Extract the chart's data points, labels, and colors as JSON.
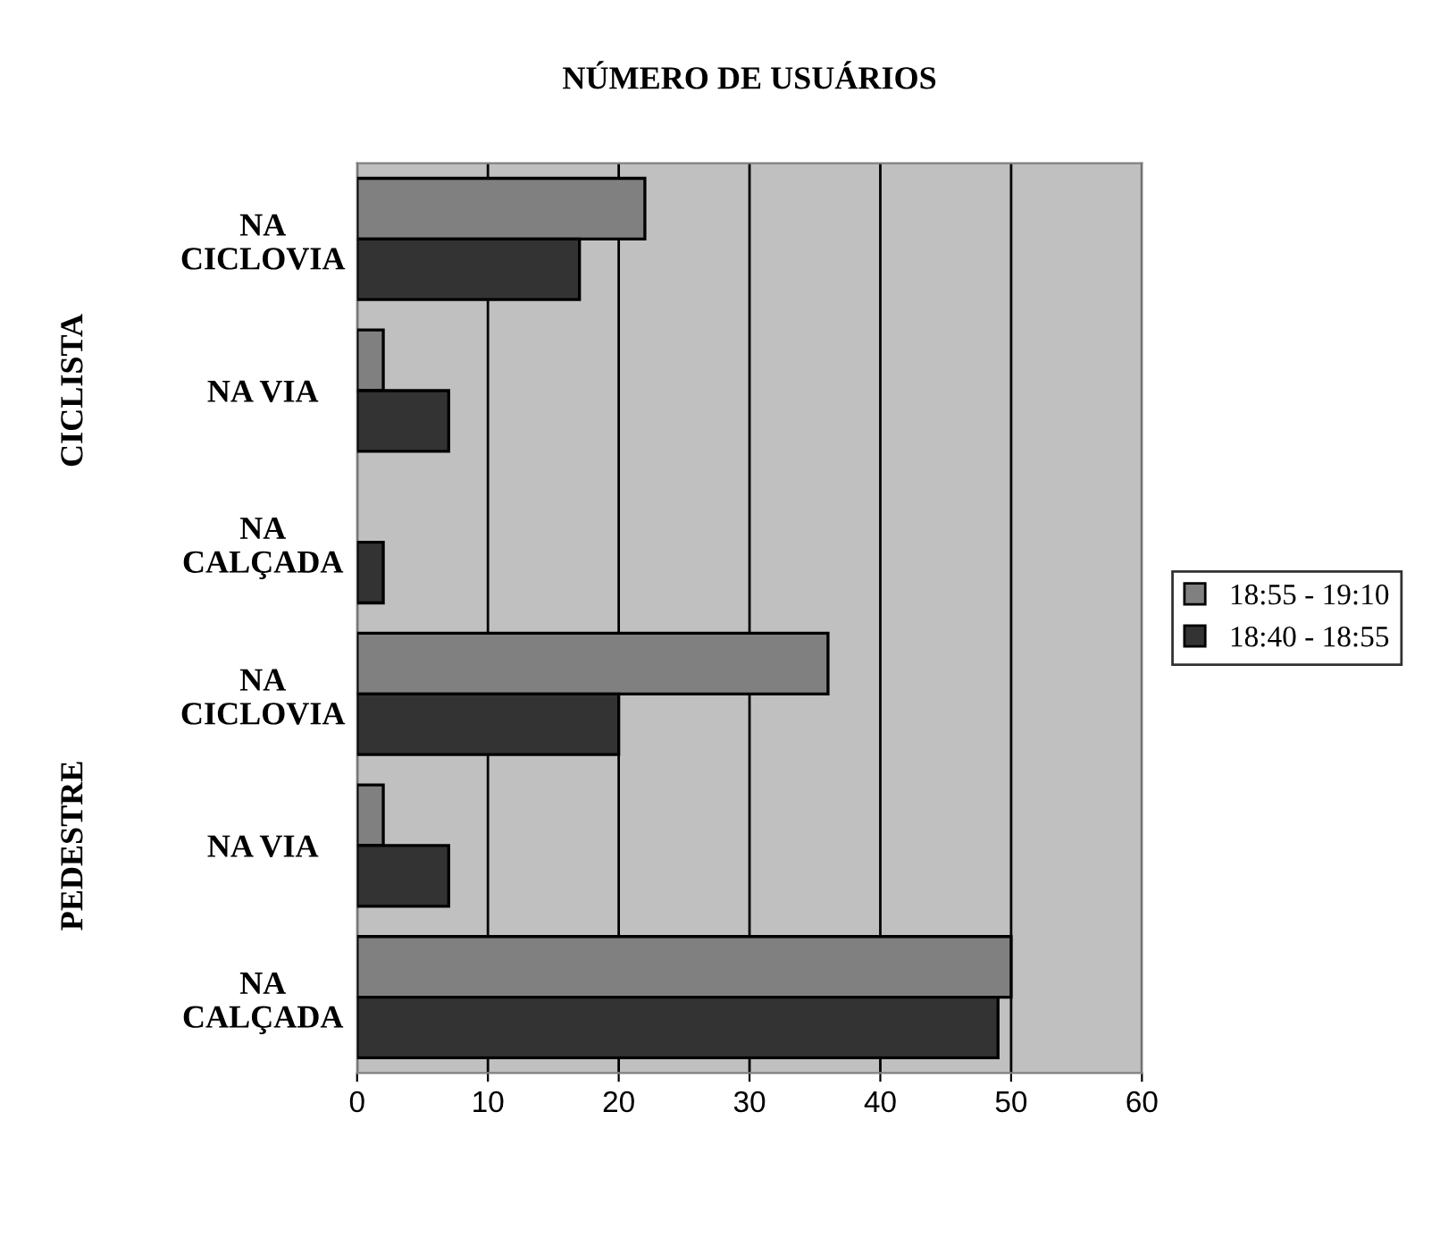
{
  "chart_data": {
    "type": "bar",
    "orientation": "horizontal",
    "title": "NÚMERO DE USUÁRIOS",
    "categories": [
      "NA\nCICLOVIA",
      "NA VIA",
      "NA\nCALÇADA",
      "NA\nCICLOVIA",
      "NA VIA",
      "NA\nCALÇADA"
    ],
    "series": [
      {
        "name": "18:55 - 19:10",
        "color": "#808080",
        "values": [
          22,
          2,
          null,
          36,
          2,
          50
        ]
      },
      {
        "name": "18:40 - 18:55",
        "color": "#333333",
        "values": [
          17,
          7,
          2,
          20,
          7,
          49
        ]
      }
    ],
    "annotations": [
      "CICLISTA",
      "PEDESTRE"
    ],
    "xlim": [
      0,
      60
    ],
    "xticks": [
      0,
      10,
      20,
      30,
      40,
      50,
      60
    ],
    "grid": "x",
    "legend": "right"
  }
}
